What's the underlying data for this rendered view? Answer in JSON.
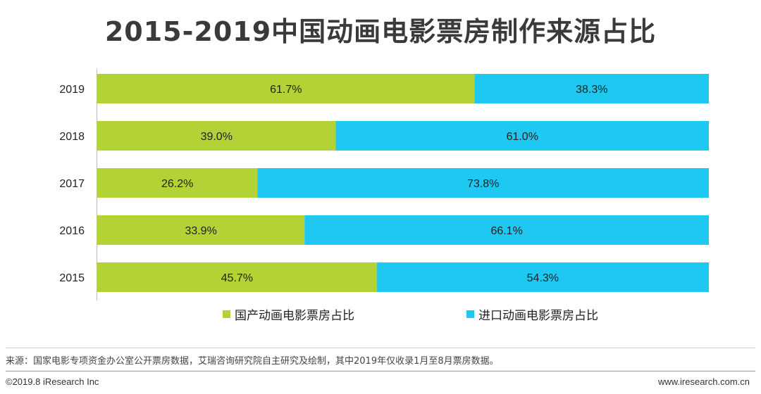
{
  "chart_data": {
    "type": "bar",
    "orientation": "horizontal",
    "stacked": true,
    "title": "2015-2019中国动画电影票房制作来源占比",
    "categories": [
      "2019",
      "2018",
      "2017",
      "2016",
      "2015"
    ],
    "series": [
      {
        "name": "国产动画电影票房占比",
        "color": "#b2d235",
        "values": [
          61.7,
          39.0,
          26.2,
          33.9,
          45.7
        ],
        "labels": [
          "61.7%",
          "39.0%",
          "26.2%",
          "33.9%",
          "45.7%"
        ]
      },
      {
        "name": "进口动画电影票房占比",
        "color": "#1fc8f0",
        "values": [
          38.3,
          61.0,
          73.8,
          66.1,
          54.3
        ],
        "labels": [
          "38.3%",
          "61.0%",
          "73.8%",
          "66.1%",
          "54.3%"
        ]
      }
    ],
    "xlim": [
      0,
      100
    ],
    "grid": false,
    "legend_position": "bottom"
  },
  "source": "来源：国家电影专项资金办公室公开票房数据，艾瑞咨询研究院自主研究及绘制，其中2019年仅收录1月至8月票房数据。",
  "footer": {
    "left": "©2019.8 iResearch Inc",
    "right": "www.iresearch.com.cn"
  }
}
